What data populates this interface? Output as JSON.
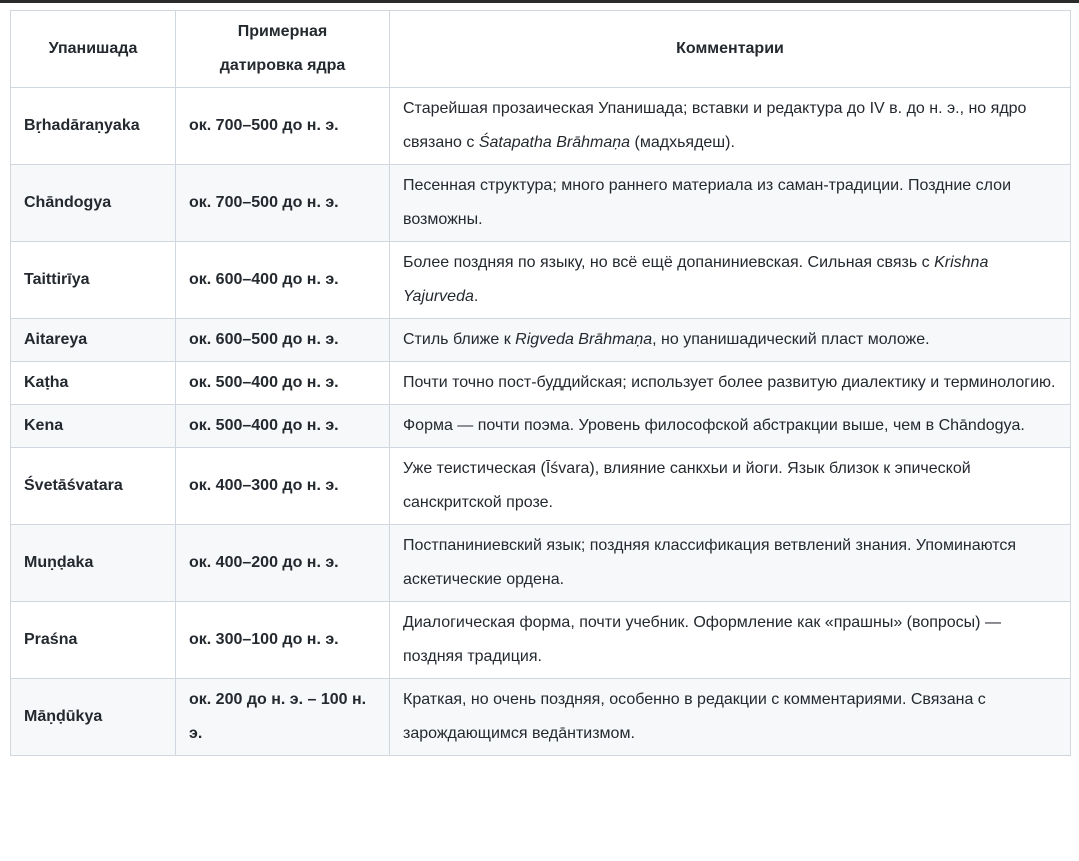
{
  "colors": {
    "text": "#24292f",
    "border": "#d0d7de",
    "row_alt": "#f6f8fa",
    "top_bar": "#2b2b2b",
    "background": "#ffffff"
  },
  "table": {
    "headers": {
      "upanishad": "Упанишада",
      "dating_lines": [
        "Примерная",
        "датировка ядра"
      ],
      "comments": "Комментарии"
    },
    "rows": [
      {
        "name": "Bṛhadāraṇyaka",
        "dating": "ок. 700–500 до н. э.",
        "comment": [
          {
            "text": "Старейшая прозаическая Упанишада; вставки и редактура до IV в. до н. э., но ядро связано с ",
            "italic": false
          },
          {
            "text": "Śatapatha Brāhmaṇa",
            "italic": true
          },
          {
            "text": " (мадхьядеш).",
            "italic": false
          }
        ]
      },
      {
        "name": "Chāndogya",
        "dating": "ок. 700–500 до н. э.",
        "comment": [
          {
            "text": "Песенная структура; много раннего материала из саман-традиции. Поздние слои возможны.",
            "italic": false
          }
        ]
      },
      {
        "name": "Taittirīya",
        "dating": "ок. 600–400 до н. э.",
        "comment": [
          {
            "text": "Более поздняя по языку, но всё ещё допаниниевская. Сильная связь с ",
            "italic": false
          },
          {
            "text": "Krishna Yajurveda",
            "italic": true
          },
          {
            "text": ".",
            "italic": false
          }
        ]
      },
      {
        "name": "Aitareya",
        "dating": "ок. 600–500 до н. э.",
        "comment": [
          {
            "text": "Стиль ближе к ",
            "italic": false
          },
          {
            "text": "Rigveda Brāhmaṇa",
            "italic": true
          },
          {
            "text": ", но упанишадический пласт моложе.",
            "italic": false
          }
        ]
      },
      {
        "name": "Kaṭha",
        "dating": "ок. 500–400 до н. э.",
        "comment": [
          {
            "text": "Почти точно пост-буддийская; использует более развитую диалектику и терминологию.",
            "italic": false
          }
        ]
      },
      {
        "name": "Kena",
        "dating": "ок. 500–400 до н. э.",
        "comment": [
          {
            "text": "Форма — почти поэма. Уровень философской абстракции выше, чем в Chāndogya.",
            "italic": false
          }
        ]
      },
      {
        "name": "Śvetāśvatara",
        "dating": "ок. 400–300 до н. э.",
        "comment": [
          {
            "text": "Уже теистическая (Īśvara), влияние санкхьи и йоги. Язык близок к эпической санскритской прозе.",
            "italic": false
          }
        ]
      },
      {
        "name": "Muṇḍaka",
        "dating": "ок. 400–200 до н. э.",
        "comment": [
          {
            "text": "Постпаниниевский язык; поздняя классификация ветвлений знания. Упоминаются аскетические ордена.",
            "italic": false
          }
        ]
      },
      {
        "name": "Praśna",
        "dating": "ок. 300–100 до н. э.",
        "comment": [
          {
            "text": "Диалогическая форма, почти учебник. Оформление как «прашны» (вопросы) — поздняя традиция.",
            "italic": false
          }
        ]
      },
      {
        "name": "Māṇḍūkya",
        "dating": "ок. 200 до н. э. – 100 н. э.",
        "comment": [
          {
            "text": "Краткая, но очень поздняя, особенно в редакции с комментариями. Связана с зарождающимся ведāнтизмом.",
            "italic": false
          }
        ]
      }
    ]
  }
}
